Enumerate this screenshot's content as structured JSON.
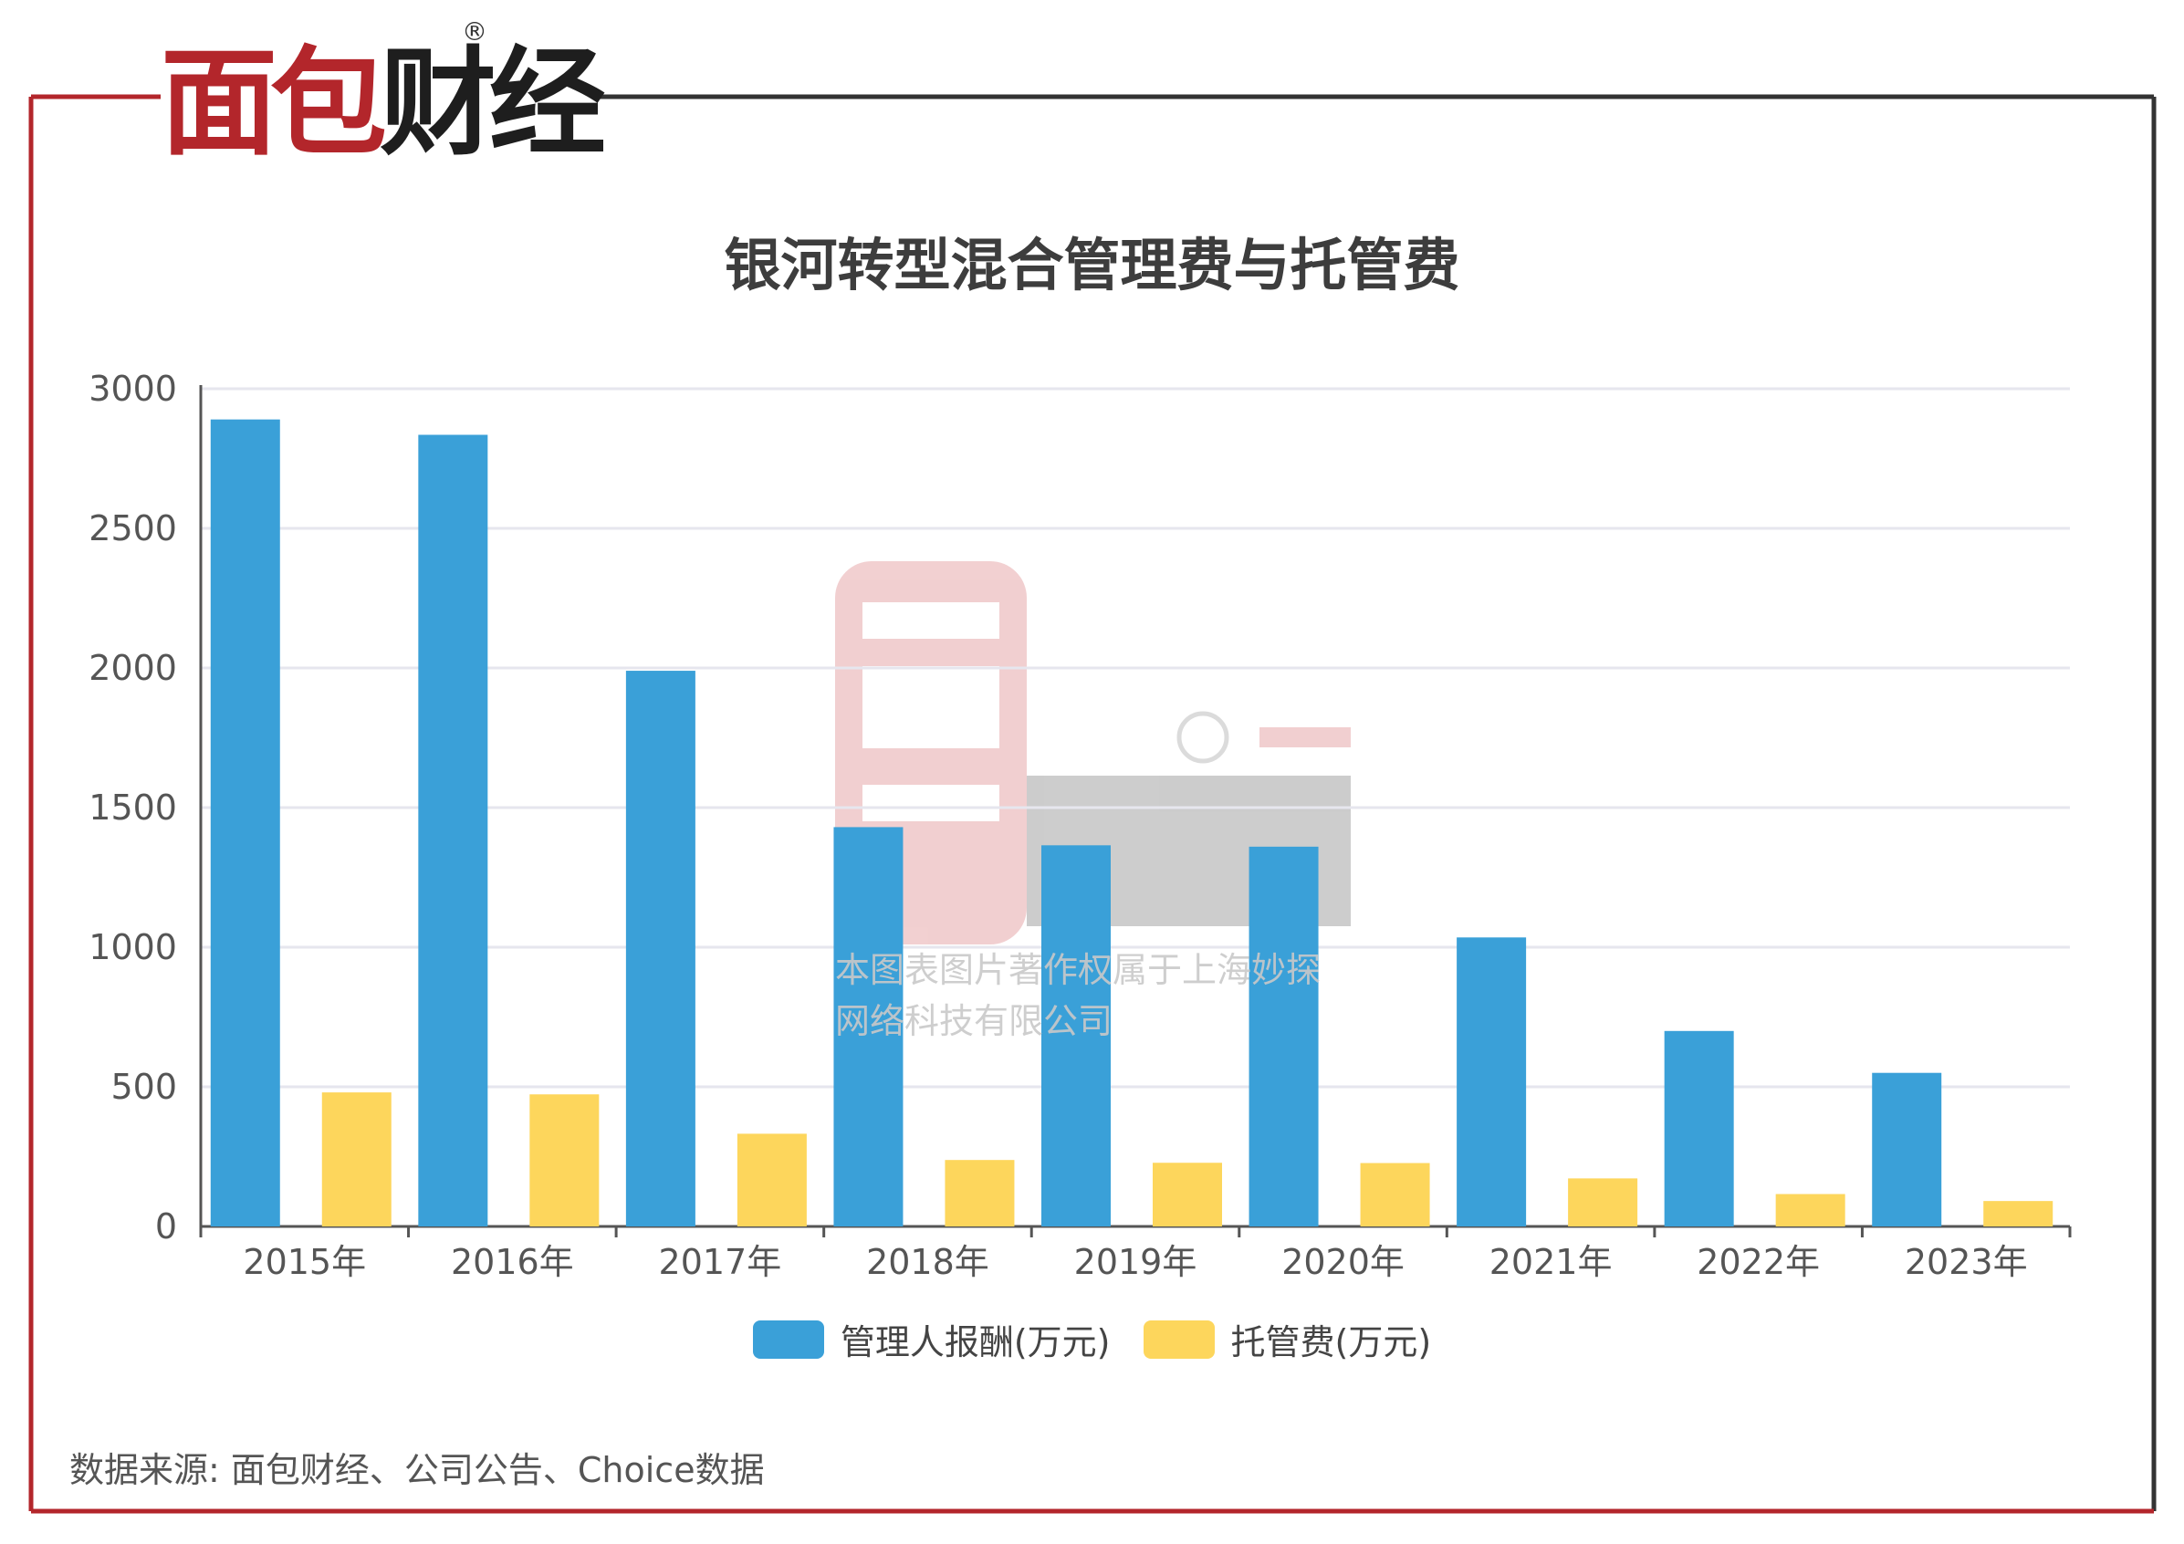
{
  "brand": {
    "name_red": "面包",
    "name_dark": "财经",
    "registered_mark": "®"
  },
  "watermark": {
    "line1": "本图表图片著作权属于上海妙探",
    "line2": "网络科技有限公司"
  },
  "colors": {
    "frame": "#b3262b",
    "frame_dark": "#333333",
    "series1": "#3aa0d8",
    "series2": "#fdd65c",
    "grid": "#e6e6ee",
    "axis": "#555555"
  },
  "source": "数据来源: 面包财经、公司公告、Choice数据",
  "chart_data": {
    "type": "bar",
    "title": "银河转型混合管理费与托管费",
    "categories": [
      "2015年",
      "2016年",
      "2017年",
      "2018年",
      "2019年",
      "2020年",
      "2021年",
      "2022年",
      "2023年"
    ],
    "series": [
      {
        "name": "管理人报酬(万元)",
        "color": "#3aa0d8",
        "values": [
          2890,
          2835,
          1990,
          1430,
          1365,
          1360,
          1035,
          700,
          550
        ]
      },
      {
        "name": "托管费(万元)",
        "color": "#fdd65c",
        "values": [
          480,
          473,
          332,
          238,
          228,
          227,
          172,
          116,
          91
        ]
      }
    ],
    "ylim": [
      0,
      3000
    ],
    "yticks": [
      0,
      500,
      1000,
      1500,
      2000,
      2500,
      3000
    ],
    "grid": true,
    "legend": "bottom-center"
  }
}
